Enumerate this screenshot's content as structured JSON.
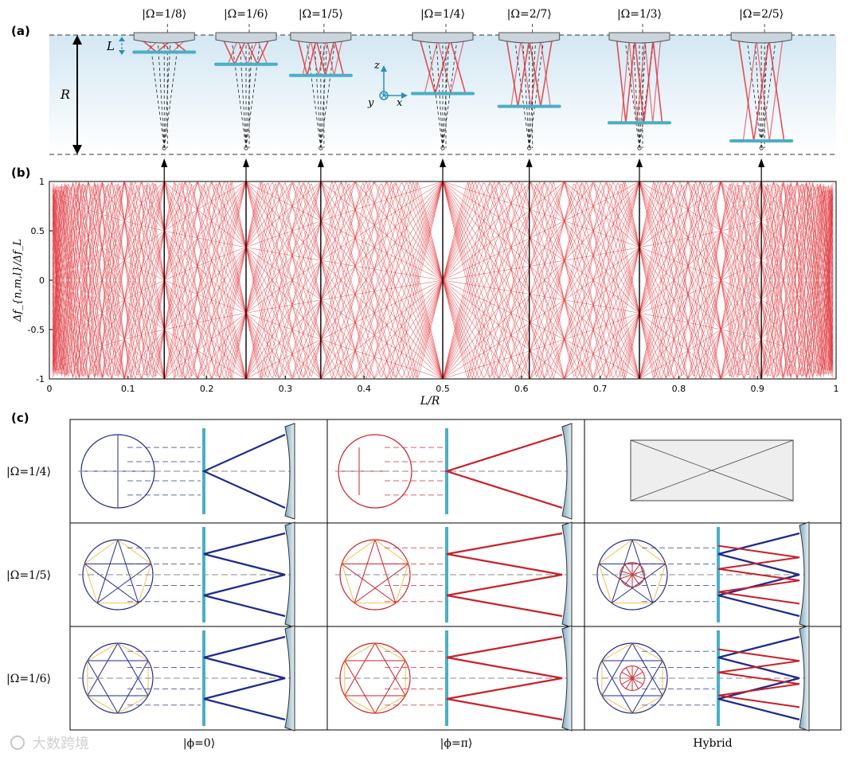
{
  "panels": {
    "a": "(a)",
    "b": "(b)",
    "c": "(c)"
  },
  "panel_a": {
    "states": [
      "|Ω=1/8⟩",
      "|Ω=1/6⟩",
      "|Ω=1/5⟩",
      "|Ω=1/4⟩",
      "|Ω=2/7⟩",
      "|Ω=1/3⟩",
      "|Ω=2/5⟩"
    ],
    "L_label": "L",
    "R_label": "R",
    "axes": {
      "z": "z",
      "y": "y",
      "x": "x"
    },
    "colors": {
      "band": "#dcebf5",
      "mirror": "#c9d4dc",
      "flat": "#4aafc4",
      "beam": "#e0333a"
    }
  },
  "chart_data": {
    "type": "line",
    "title": "",
    "xlabel": "L/R",
    "ylabel": "Δf_{n,m,l}/Δf_L",
    "xlim": [
      0,
      1
    ],
    "ylim": [
      -1,
      1
    ],
    "xticks": [
      "0",
      "0.1",
      "0.2",
      "0.3",
      "0.4",
      "0.5",
      "0.6",
      "0.7",
      "0.8",
      "0.9",
      "1"
    ],
    "yticks": [
      "1",
      "0.5",
      "0",
      "-0.5",
      "-1"
    ],
    "degeneracy_points": [
      {
        "state": "|Ω=1/8⟩",
        "L_over_R": 0.146
      },
      {
        "state": "|Ω=1/6⟩",
        "L_over_R": 0.25
      },
      {
        "state": "|Ω=1/5⟩",
        "L_over_R": 0.345
      },
      {
        "state": "|Ω=1/4⟩",
        "L_over_R": 0.5
      },
      {
        "state": "|Ω=2/7⟩",
        "L_over_R": 0.61
      },
      {
        "state": "|Ω=1/3⟩",
        "L_over_R": 0.75
      },
      {
        "state": "|Ω=2/5⟩",
        "L_over_R": 0.905
      }
    ],
    "line_color": "#e0333a"
  },
  "panel_c": {
    "rows": [
      "|Ω=1/4⟩",
      "|Ω=1/5⟩",
      "|Ω=1/6⟩"
    ],
    "columns": [
      "|ϕ=0⟩",
      "|ϕ=π⟩",
      "Hybrid"
    ],
    "colors": {
      "blue": "#1f2a8c",
      "red": "#c8202a",
      "yellow": "#f2c14e",
      "flat": "#4aafc4"
    }
  },
  "watermark": "大数跨境"
}
